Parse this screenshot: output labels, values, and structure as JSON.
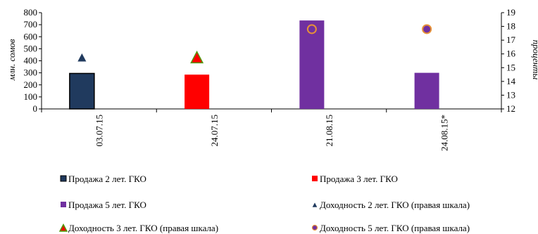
{
  "chart_data": {
    "type": "bar",
    "categories": [
      "03.07.15",
      "24.07.15",
      "21.08.15",
      "24.08.15*"
    ],
    "ylabel": "млн. сомов",
    "y2label": "проценты",
    "ylim": [
      0,
      800
    ],
    "yticks": [
      0,
      100,
      200,
      300,
      400,
      500,
      600,
      700,
      800
    ],
    "y2lim": [
      12,
      19
    ],
    "y2ticks": [
      12,
      13,
      14,
      15,
      16,
      17,
      18,
      19
    ],
    "grid": false,
    "legend_position": "bottom",
    "bar_series": [
      {
        "name": "Продажа 2 лет. ГКО",
        "color": "#203a5e",
        "border": "#000000",
        "values": [
          295,
          null,
          null,
          null
        ]
      },
      {
        "name": "Продажа 3 лет. ГКО",
        "color": "#ff0000",
        "border": null,
        "values": [
          null,
          285,
          null,
          null
        ]
      },
      {
        "name": "Продажа 5 лет. ГКО",
        "color": "#7030a0",
        "border": null,
        "values": [
          null,
          null,
          735,
          300
        ]
      }
    ],
    "marker_series": [
      {
        "name": "Доходность 2 лет. ГКО (правая шкала)",
        "marker": "triangle",
        "color": "#203a5e",
        "values": [
          15.7,
          null,
          null,
          null
        ]
      },
      {
        "name": "Доходность 3 лет. ГКО (правая шкала)",
        "marker": "triangle",
        "color": "#ff0000",
        "border": "#4e9a06",
        "values": [
          null,
          15.7,
          null,
          null
        ]
      },
      {
        "name": "Доходность 5 лет. ГКО (правая шкала)",
        "marker": "circle",
        "color": "#7030a0",
        "border": "#e69138",
        "values": [
          null,
          null,
          17.8,
          17.8
        ]
      }
    ]
  }
}
